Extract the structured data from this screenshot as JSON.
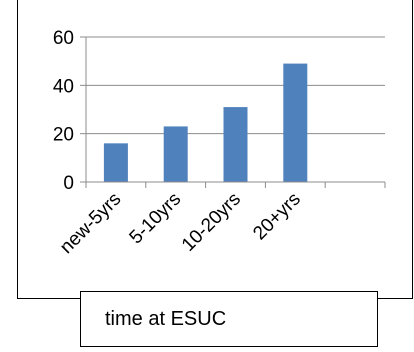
{
  "chart_data": {
    "type": "bar",
    "categories": [
      "new-5yrs",
      "5-10yrs",
      "10-20yrs",
      "20+yrs",
      ""
    ],
    "values": [
      16,
      23,
      31,
      49,
      null
    ],
    "ylim": [
      0,
      60
    ],
    "yticks": [
      0,
      20,
      40,
      60
    ],
    "grid": true,
    "legend": "none",
    "bar_color": "#4f81bd",
    "grid_color": "#8c8c8c"
  },
  "caption": "time at ESUC"
}
